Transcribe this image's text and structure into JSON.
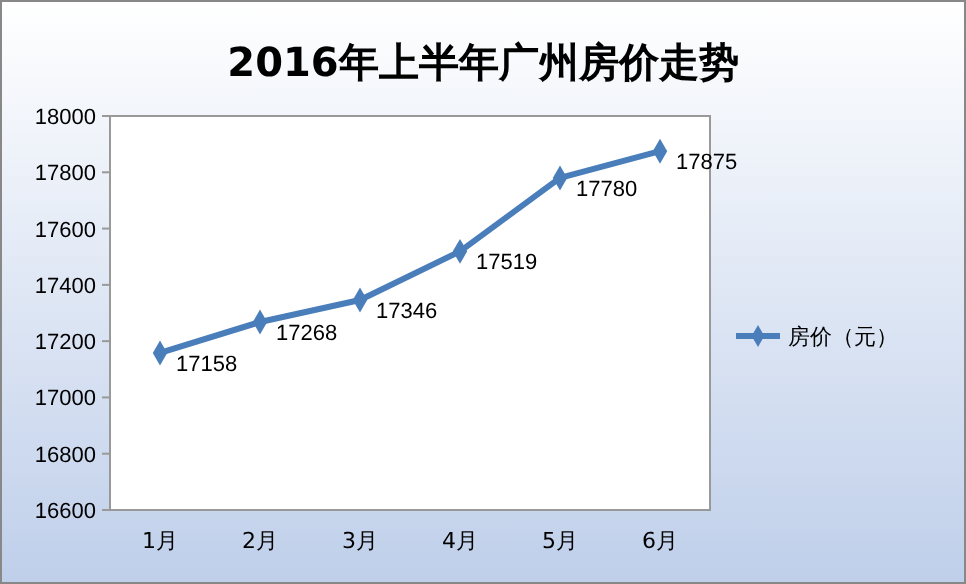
{
  "chart_data": {
    "type": "line",
    "title": "2016年上半年广州房价走势",
    "categories": [
      "1月",
      "2月",
      "3月",
      "4月",
      "5月",
      "6月"
    ],
    "series": [
      {
        "name": "房价（元）",
        "color": "#4a7ebb",
        "values": [
          17158,
          17268,
          17346,
          17519,
          17780,
          17875
        ]
      }
    ],
    "ylim": [
      16600,
      18000
    ],
    "yticks": [
      16600,
      16800,
      17000,
      17200,
      17400,
      17600,
      17800,
      18000
    ],
    "grid": false,
    "legend": "right",
    "marker": "diamond",
    "line_style": "solid",
    "data_labels": true
  }
}
